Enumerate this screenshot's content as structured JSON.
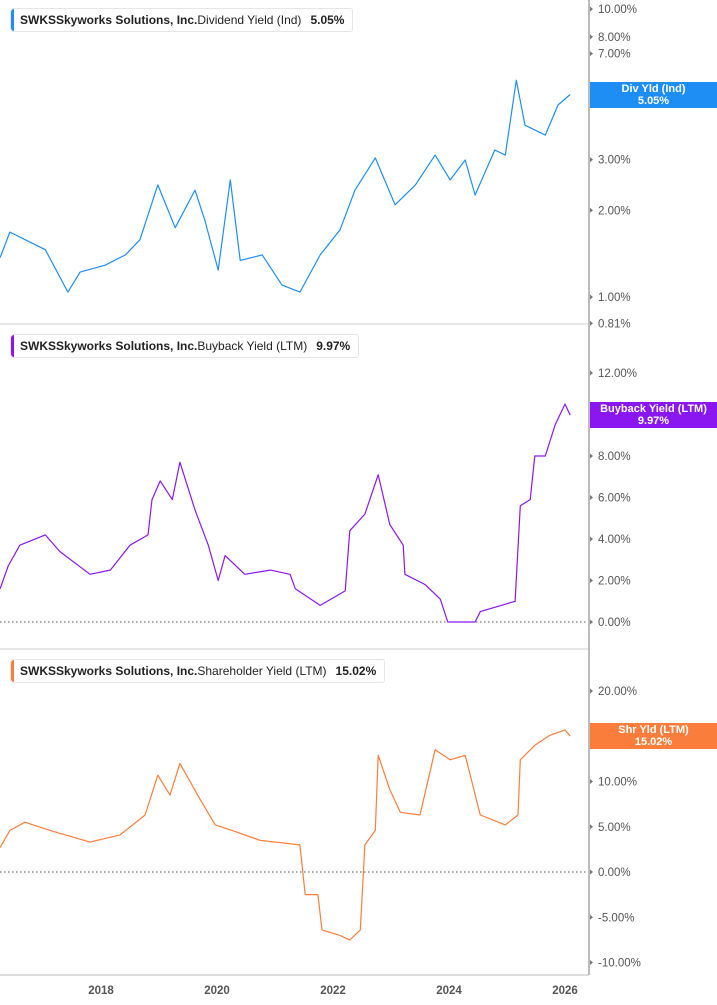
{
  "colors": {
    "dividend": "#1e8ef5",
    "buyback": "#8a17f0",
    "shareholder": "#fb7d3c",
    "axis": "#bbbbbb",
    "text": "#555555"
  },
  "x_axis": {
    "ticks": [
      "2018",
      "2020",
      "2022",
      "2024",
      "2026"
    ],
    "tick_values": [
      2018,
      2020,
      2022,
      2024,
      2026
    ]
  },
  "chart_data": [
    {
      "type": "line",
      "ticker": "SWKS",
      "company": "Skyworks Solutions, Inc.",
      "metric": "Dividend Yield (Ind)",
      "value_label": "5.05%",
      "tag_title": "Div Yld (Ind)",
      "tag_value": "5.05%",
      "y_scale": "log",
      "ylim": [
        0.81,
        10.4
      ],
      "y_ticks": [
        "10.00%",
        "8.00%",
        "7.00%",
        "5.00%",
        "3.00%",
        "2.00%",
        "1.00%",
        "0.81%"
      ],
      "y_tick_values": [
        10,
        8,
        7,
        5,
        3,
        2,
        1,
        0.81
      ],
      "x_unit": "year",
      "grid": false,
      "x": [
        2016.26,
        2016.43,
        2017.04,
        2017.43,
        2017.64,
        2018.07,
        2018.42,
        2018.67,
        2018.98,
        2019.28,
        2019.62,
        2019.79,
        2020.02,
        2020.23,
        2020.4,
        2020.78,
        2021.12,
        2021.43,
        2021.78,
        2022.12,
        2022.38,
        2022.73,
        2023.07,
        2023.42,
        2023.76,
        2024.02,
        2024.28,
        2024.45,
        2024.79,
        2024.97,
        2025.16,
        2025.31,
        2025.66,
        2025.88,
        2026.09
      ],
      "y": [
        1.37,
        1.68,
        1.46,
        1.04,
        1.22,
        1.29,
        1.4,
        1.58,
        2.45,
        1.74,
        2.35,
        1.85,
        1.24,
        2.55,
        1.34,
        1.4,
        1.1,
        1.04,
        1.4,
        1.71,
        2.35,
        3.04,
        2.09,
        2.45,
        3.11,
        2.55,
        2.99,
        2.26,
        3.24,
        3.11,
        5.66,
        3.95,
        3.65,
        4.64,
        5.05
      ]
    },
    {
      "type": "line",
      "ticker": "SWKS",
      "company": "Skyworks Solutions, Inc.",
      "metric": "Buyback Yield (LTM)",
      "value_label": "9.97%",
      "tag_title": "Buyback Yield (LTM)",
      "tag_value": "9.97%",
      "y_scale": "linear",
      "ylim": [
        -1.25,
        14.3
      ],
      "y_ticks": [
        "12.00%",
        "8.00%",
        "6.00%",
        "4.00%",
        "2.00%",
        "0.00%"
      ],
      "y_tick_values": [
        12,
        8,
        6,
        4,
        2,
        0
      ],
      "x_unit": "year",
      "grid": false,
      "x": [
        2016.26,
        2016.4,
        2016.6,
        2017.04,
        2017.29,
        2017.81,
        2018.16,
        2018.5,
        2018.81,
        2018.88,
        2019.02,
        2019.23,
        2019.36,
        2019.62,
        2019.85,
        2020.02,
        2020.14,
        2020.48,
        2020.92,
        2021.26,
        2021.35,
        2021.78,
        2022.21,
        2022.29,
        2022.55,
        2022.78,
        2022.98,
        2023.21,
        2023.24,
        2023.59,
        2023.85,
        2023.98,
        2024.45,
        2024.54,
        2025.14,
        2025.23,
        2025.4,
        2025.48,
        2025.66,
        2025.83,
        2026.0,
        2026.09
      ],
      "y": [
        1.6,
        2.7,
        3.7,
        4.2,
        3.4,
        2.3,
        2.5,
        3.7,
        4.2,
        5.9,
        6.8,
        5.9,
        7.7,
        5.4,
        3.7,
        2.0,
        3.2,
        2.3,
        2.5,
        2.3,
        1.6,
        0.8,
        1.5,
        4.4,
        5.2,
        7.1,
        4.7,
        3.7,
        2.3,
        1.8,
        1.1,
        0.0,
        0.0,
        0.5,
        1.0,
        5.6,
        5.9,
        8.0,
        8.0,
        9.5,
        10.5,
        9.97
      ]
    },
    {
      "type": "line",
      "ticker": "SWKS",
      "company": "Skyworks Solutions, Inc.",
      "metric": "Shareholder Yield (LTM)",
      "value_label": "15.02%",
      "tag_title": "Shr Yld (LTM)",
      "tag_value": "15.02%",
      "y_scale": "linear",
      "ylim": [
        -11.4,
        24.5
      ],
      "y_ticks": [
        "20.00%",
        "15.00%",
        "10.00%",
        "5.00%",
        "0.00%",
        "-5.00%",
        "-10.00%"
      ],
      "y_tick_values": [
        20,
        15,
        10,
        5,
        0,
        -5,
        -10
      ],
      "x_unit": "year",
      "grid": false,
      "x": [
        2016.26,
        2016.43,
        2016.69,
        2017.12,
        2017.81,
        2018.33,
        2018.76,
        2018.98,
        2019.19,
        2019.36,
        2019.71,
        2019.97,
        2020.26,
        2020.74,
        2021.43,
        2021.52,
        2021.74,
        2021.81,
        2022.12,
        2022.29,
        2022.47,
        2022.55,
        2022.73,
        2022.78,
        2022.98,
        2023.16,
        2023.5,
        2023.76,
        2024.02,
        2024.28,
        2024.54,
        2024.97,
        2025.19,
        2025.23,
        2025.48,
        2025.74,
        2026.0,
        2026.09
      ],
      "y": [
        2.7,
        4.6,
        5.5,
        4.6,
        3.3,
        4.1,
        6.3,
        10.7,
        8.5,
        12.0,
        8.0,
        5.2,
        4.6,
        3.5,
        3.0,
        -2.5,
        -2.5,
        -6.4,
        -7.0,
        -7.5,
        -6.4,
        3.0,
        4.6,
        12.9,
        9.1,
        6.6,
        6.3,
        13.5,
        12.4,
        12.9,
        6.3,
        5.2,
        6.3,
        12.4,
        14.0,
        15.1,
        15.7,
        15.02
      ]
    }
  ]
}
